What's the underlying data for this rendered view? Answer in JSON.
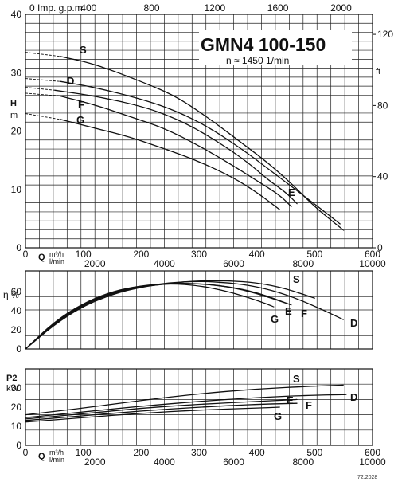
{
  "chart_data": [
    {
      "type": "line",
      "title": "GMN4 100-150",
      "subtitle": "n ≈ 1450 1/min",
      "ylabel": "H",
      "yunit": "m",
      "ylim": [
        0,
        40
      ],
      "yticks": [
        "0",
        "10",
        "20",
        "30",
        "40"
      ],
      "ylabel_right": "ft",
      "yticks_right": [
        "0",
        "40",
        "80",
        "120"
      ],
      "xlabel_top": "0 Imp. g.p.m.",
      "xticks_top": [
        "400",
        "800",
        "1200",
        "1600",
        "2000"
      ],
      "xlim": [
        0,
        600
      ],
      "xticks": [
        "0",
        "100",
        "200",
        "300",
        "400",
        "500",
        "600"
      ],
      "xlabel_q": "Q",
      "xunit_m3h": "m³/h",
      "xunit_lmin": "l/min",
      "xticks_lmin": [
        "2000",
        "4000",
        "6000",
        "8000",
        "10000"
      ],
      "grid": true,
      "series": [
        {
          "name": "S",
          "x": [
            0,
            60,
            120,
            200,
            260,
            320,
            380,
            420,
            460,
            500,
            550
          ],
          "y": [
            33.5,
            32.8,
            31.5,
            28.5,
            26,
            22,
            17.5,
            14.5,
            11,
            7,
            3
          ]
        },
        {
          "name": "D",
          "x": [
            0,
            60,
            120,
            200,
            260,
            320,
            380,
            420,
            460,
            500,
            545
          ],
          "y": [
            29,
            28.5,
            27.5,
            25.5,
            23.5,
            20.5,
            16.5,
            13.5,
            10.5,
            7.5,
            4
          ]
        },
        {
          "name": "E",
          "x": [
            0,
            50,
            120,
            200,
            260,
            320,
            380,
            420,
            450,
            470
          ],
          "y": [
            27.5,
            27,
            26,
            24.3,
            22.2,
            19,
            15,
            11.6,
            9.5,
            7.5
          ]
        },
        {
          "name": "F",
          "x": [
            0,
            60,
            120,
            180,
            240,
            300,
            360,
            400,
            440,
            460
          ],
          "y": [
            26.5,
            26,
            24.5,
            22.5,
            20.5,
            17.5,
            14,
            11.5,
            9,
            7
          ]
        },
        {
          "name": "G",
          "x": [
            0,
            60,
            120,
            180,
            240,
            300,
            360,
            400,
            440
          ],
          "y": [
            23,
            22,
            20.5,
            19,
            17,
            14.8,
            12,
            9.5,
            6.5
          ]
        }
      ]
    },
    {
      "type": "line",
      "ylabel": "η",
      "yunit": "%",
      "ylim": [
        0,
        80
      ],
      "yticks": [
        "0",
        "20",
        "40",
        "60"
      ],
      "xlim": [
        0,
        600
      ],
      "xticks": [
        "0",
        "100",
        "200",
        "300",
        "400",
        "500",
        "600"
      ],
      "xlabel_q": "Q",
      "xunit_m3h": "m³/h",
      "xunit_lmin": "l/min",
      "xticks_lmin": [
        "2000",
        "4000",
        "6000",
        "8000",
        "10000"
      ],
      "grid": true,
      "series": [
        {
          "name": "S",
          "x": [
            0,
            50,
            100,
            150,
            200,
            250,
            300,
            350,
            400,
            450,
            500
          ],
          "y": [
            0,
            25,
            44,
            56,
            63.5,
            67.5,
            70,
            70,
            68,
            62,
            52
          ]
        },
        {
          "name": "D",
          "x": [
            0,
            50,
            100,
            150,
            200,
            250,
            300,
            350,
            400,
            450,
            500,
            550
          ],
          "y": [
            0,
            26,
            45,
            57,
            64,
            68,
            69.5,
            68,
            64,
            56,
            44,
            30
          ]
        },
        {
          "name": "E",
          "x": [
            0,
            50,
            100,
            150,
            200,
            250,
            300,
            350,
            400,
            450
          ],
          "y": [
            0,
            27,
            46,
            58,
            64.5,
            67.5,
            67,
            64,
            57,
            47
          ]
        },
        {
          "name": "F",
          "x": [
            0,
            50,
            100,
            150,
            200,
            250,
            300,
            350,
            400,
            460
          ],
          "y": [
            0,
            27,
            46,
            57.5,
            64,
            67,
            67,
            64,
            58,
            45
          ]
        },
        {
          "name": "G",
          "x": [
            0,
            50,
            100,
            150,
            200,
            250,
            300,
            350,
            400,
            430
          ],
          "y": [
            0,
            28,
            47,
            59,
            65,
            67,
            65,
            59,
            50,
            43
          ]
        }
      ]
    },
    {
      "type": "line",
      "ylabel": "P2",
      "yunit": "kW",
      "ylim": [
        0,
        40
      ],
      "yticks": [
        "0",
        "10",
        "20",
        "30"
      ],
      "xlim": [
        0,
        600
      ],
      "xticks": [
        "0",
        "100",
        "200",
        "300",
        "400",
        "500",
        "600"
      ],
      "xlabel_q": "Q",
      "xunit_m3h": "m³/h",
      "xunit_lmin": "l/min",
      "xticks_lmin": [
        "2000",
        "4000",
        "6000",
        "8000",
        "10000"
      ],
      "grid": true,
      "series": [
        {
          "name": "S",
          "x": [
            0,
            100,
            200,
            300,
            400,
            500,
            550
          ],
          "y": [
            16,
            19.5,
            23.5,
            27,
            29.5,
            31,
            31.5
          ]
        },
        {
          "name": "D",
          "x": [
            0,
            100,
            200,
            300,
            400,
            500,
            555
          ],
          "y": [
            14.5,
            17.5,
            20.5,
            23,
            25,
            26.3,
            26.5
          ]
        },
        {
          "name": "E",
          "x": [
            0,
            100,
            200,
            300,
            400,
            470
          ],
          "y": [
            13.8,
            16.5,
            19.5,
            21.5,
            23,
            24
          ]
        },
        {
          "name": "F",
          "x": [
            0,
            100,
            200,
            300,
            400,
            470
          ],
          "y": [
            13,
            15.5,
            18,
            20,
            21.5,
            22
          ]
        },
        {
          "name": "G",
          "x": [
            0,
            100,
            200,
            300,
            400,
            440
          ],
          "y": [
            12.2,
            14.5,
            16.8,
            18.5,
            19.5,
            20
          ]
        }
      ]
    }
  ],
  "footer_code": "72.2028"
}
